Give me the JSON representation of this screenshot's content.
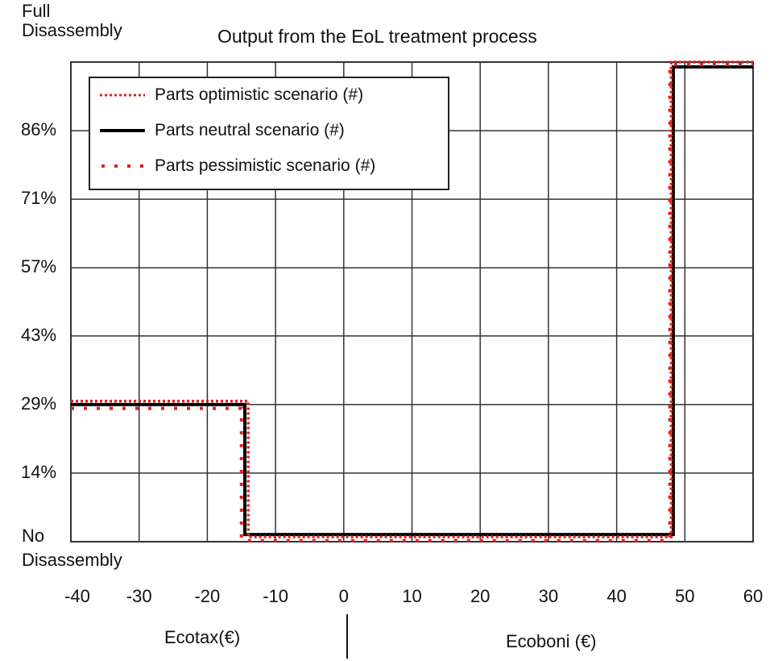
{
  "chart_data": {
    "type": "line",
    "title": "Output from the EoL treatment process",
    "xlabel_left": "Ecotax(€)",
    "xlabel_right": "Ecoboni (€)",
    "y_top_label": [
      "Full",
      "Disassembly"
    ],
    "y_bottom_label": [
      "No",
      "Disassembly"
    ],
    "xlim": [
      -40,
      60
    ],
    "ylim": [
      0,
      100
    ],
    "x_ticks": [
      -40,
      -30,
      -20,
      -10,
      0,
      10,
      20,
      30,
      40,
      50,
      60
    ],
    "y_ticks": [
      {
        "v": 14.3,
        "label": "14%"
      },
      {
        "v": 28.6,
        "label": "29%"
      },
      {
        "v": 42.9,
        "label": "43%"
      },
      {
        "v": 57.1,
        "label": "57%"
      },
      {
        "v": 71.4,
        "label": "71%"
      },
      {
        "v": 85.7,
        "label": "86%"
      }
    ],
    "grid": true,
    "legend_position": "top-left",
    "series": [
      {
        "name": "Parts optimistic scenario (#)",
        "color": "#e02020",
        "style": "dotted",
        "x": [
          -40,
          -14,
          -14,
          48,
          48,
          60
        ],
        "y": [
          29.3,
          29.3,
          1,
          1,
          100,
          100
        ]
      },
      {
        "name": "Parts neutral scenario (#)",
        "color": "#000000",
        "style": "solid",
        "x": [
          -40,
          -14.5,
          -14.5,
          48.3,
          48.3,
          60
        ],
        "y": [
          28.6,
          28.6,
          1.5,
          1.5,
          99,
          99
        ]
      },
      {
        "name": "Parts pessimistic scenario (#)",
        "color": "#e02020",
        "style": "sparse-dotted",
        "x": [
          -40,
          -15,
          -15,
          47.8,
          47.8,
          60
        ],
        "y": [
          27.8,
          27.8,
          0.2,
          0.2,
          99.5,
          99.5
        ]
      }
    ]
  }
}
